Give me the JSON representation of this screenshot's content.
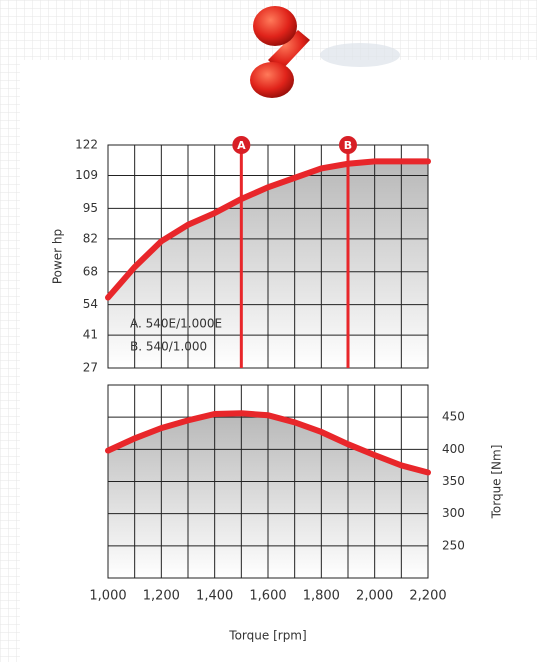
{
  "chart_data": [
    {
      "type": "line",
      "ylabel": "Power hp",
      "x": [
        1000,
        1100,
        1200,
        1300,
        1400,
        1500,
        1600,
        1700,
        1800,
        1900,
        2000,
        2100,
        2200
      ],
      "xlim": [
        1000,
        2200
      ],
      "ylim": [
        27,
        122
      ],
      "yticks": [
        27,
        41,
        54,
        68,
        82,
        95,
        109,
        122
      ],
      "yaxis_position": "left",
      "grid": true,
      "series": [
        {
          "name": "Power",
          "color": "#e8262a",
          "values": [
            57,
            70,
            81,
            88,
            93,
            99,
            104,
            108,
            112,
            114,
            115,
            115,
            115
          ]
        }
      ],
      "markers": [
        {
          "label": "A",
          "x": 1500
        },
        {
          "label": "B",
          "x": 1900
        }
      ],
      "legend": [
        "A. 540E/1.000E",
        "B. 540/1.000"
      ]
    },
    {
      "type": "line",
      "ylabel": "Torque [Nm]",
      "xlabel": "Torque [rpm]",
      "x": [
        1000,
        1100,
        1200,
        1300,
        1400,
        1500,
        1600,
        1700,
        1800,
        1900,
        2000,
        2100,
        2200
      ],
      "xlim": [
        1000,
        2200
      ],
      "xticks": [
        {
          "value": 1000,
          "label": "1,000"
        },
        {
          "value": 1200,
          "label": "1,200"
        },
        {
          "value": 1400,
          "label": "1,400"
        },
        {
          "value": 1600,
          "label": "1,600"
        },
        {
          "value": 1800,
          "label": "1,800"
        },
        {
          "value": 2000,
          "label": "2,000"
        },
        {
          "value": 2200,
          "label": "2,200"
        }
      ],
      "ylim": [
        200,
        500
      ],
      "yticks": [
        250,
        300,
        350,
        400,
        450
      ],
      "yaxis_position": "right",
      "grid": true,
      "series": [
        {
          "name": "Torque",
          "color": "#e8262a",
          "values": [
            398,
            417,
            433,
            445,
            455,
            456,
            453,
            442,
            427,
            408,
            391,
            375,
            364
          ]
        }
      ]
    }
  ]
}
